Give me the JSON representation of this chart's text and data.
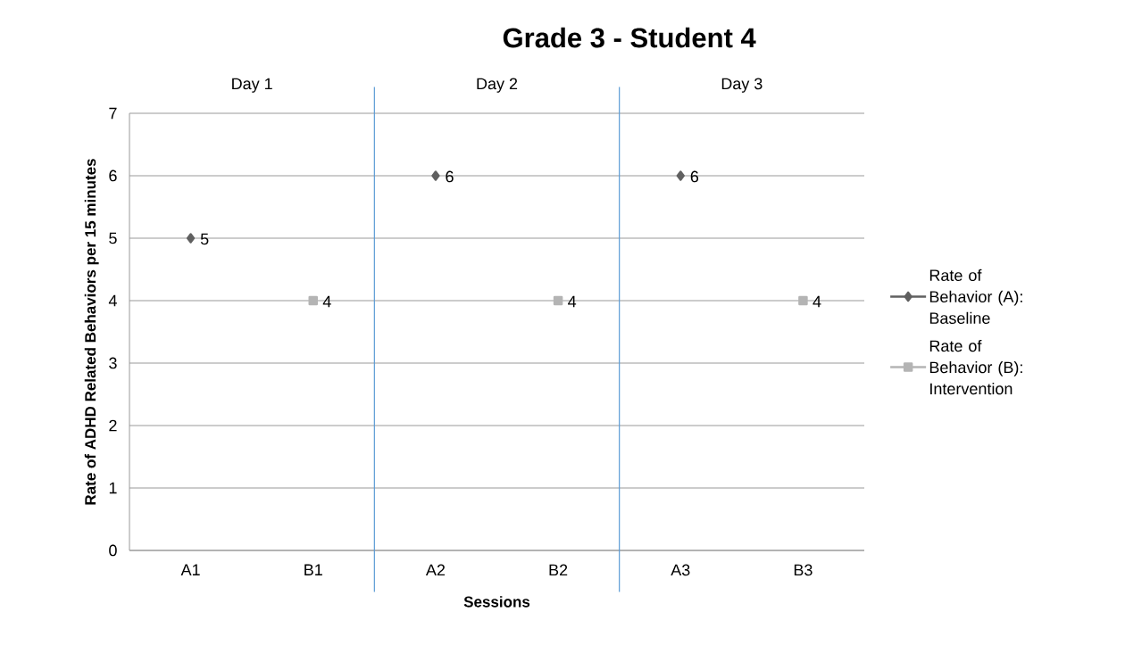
{
  "chart_data": {
    "type": "scatter",
    "title": "Grade 3 - Student 4",
    "xlabel": "Sessions",
    "ylabel": "Rate of ADHD Related Behaviors per 15 minutes",
    "categories": [
      "A1",
      "B1",
      "A2",
      "B2",
      "A3",
      "B3"
    ],
    "series": [
      {
        "name": "Rate of Behavior (A): Baseline",
        "color": "#606060",
        "marker": "diamond",
        "values": [
          5,
          null,
          6,
          null,
          6,
          null
        ]
      },
      {
        "name": "Rate of Behavior (B): Intervention",
        "color": "#b4b4b4",
        "marker": "square",
        "values": [
          null,
          4,
          null,
          4,
          null,
          4
        ]
      }
    ],
    "ylim": [
      0,
      7
    ],
    "yticks": [
      0,
      1,
      2,
      3,
      4,
      5,
      6,
      7
    ],
    "grid": "y",
    "legend": "right",
    "data_labels": true,
    "annotations": [
      "Day 1",
      "Day 2",
      "Day 3"
    ]
  }
}
